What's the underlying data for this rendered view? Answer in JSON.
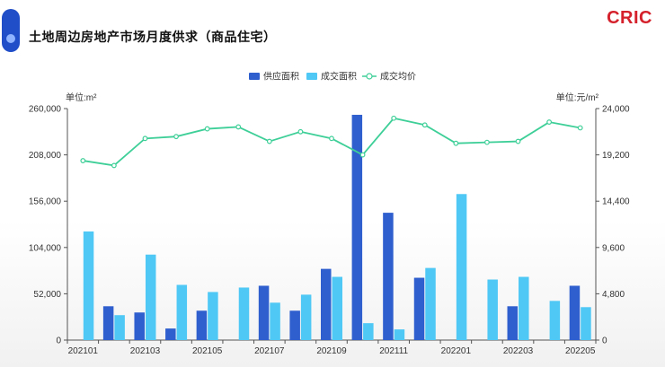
{
  "header": {
    "title": "土地周边房地产市场月度供求（商品住宅）",
    "logo": "CRIC"
  },
  "colors": {
    "supply": "#2f5fce",
    "deal_area": "#4fc8f5",
    "avg_price": "#3ecf98",
    "logo": "#d4212b"
  },
  "chart_data": {
    "type": "bar",
    "categories": [
      "202101",
      "202102",
      "202103",
      "202104",
      "202105",
      "202106",
      "202107",
      "202108",
      "202109",
      "202110",
      "202111",
      "202112",
      "202201",
      "202202",
      "202203",
      "202204",
      "202205"
    ],
    "x_tick_labels": [
      "202101",
      "202103",
      "202105",
      "202107",
      "202109",
      "202111",
      "202201",
      "202203",
      "202205"
    ],
    "left_axis": {
      "unit_label": "单位:m²",
      "ylim": [
        0,
        260000
      ],
      "ticks": [
        "0",
        "52,000",
        "104,000",
        "156,000",
        "208,000",
        "260,000"
      ]
    },
    "right_axis": {
      "unit_label": "单位:元/m²",
      "ylim": [
        0,
        24000
      ],
      "ticks": [
        "0",
        "4,800",
        "9,600",
        "14,400",
        "19,200",
        "24,000"
      ]
    },
    "legend": [
      "供应面积",
      "成交面积",
      "成交均价"
    ],
    "legend_position": "top-center",
    "series": [
      {
        "name": "供应面积",
        "type": "bar",
        "axis": "left",
        "values": [
          null,
          38000,
          31000,
          13000,
          33000,
          null,
          61000,
          33000,
          80000,
          253000,
          143000,
          70000,
          null,
          null,
          38000,
          null,
          61000
        ]
      },
      {
        "name": "成交面积",
        "type": "bar",
        "axis": "left",
        "values": [
          122000,
          28000,
          96000,
          62000,
          54000,
          59000,
          42000,
          51000,
          71000,
          19000,
          12000,
          81000,
          164000,
          68000,
          71000,
          44000,
          37000
        ]
      },
      {
        "name": "成交均价",
        "type": "line",
        "axis": "right",
        "values": [
          18600,
          18100,
          20900,
          21100,
          21900,
          22100,
          20600,
          21600,
          20900,
          19200,
          23000,
          22300,
          20400,
          20500,
          20600,
          22600,
          22000
        ]
      }
    ]
  }
}
